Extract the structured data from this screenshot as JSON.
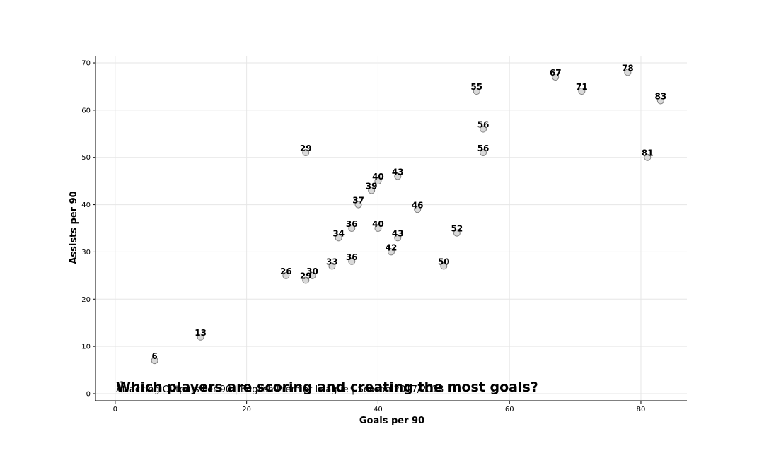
{
  "chart_data": {
    "type": "scatter",
    "title": "Which players are scoring and creating the most goals?",
    "subtitle": "Attacking Outputs Per 90 | English Premier League | Season 2017/2018",
    "xlabel": "Goals per 90",
    "ylabel": "Assists per 90",
    "xlim": [
      -3,
      87
    ],
    "ylim": [
      -1.5,
      71.5
    ],
    "xticks": [
      0,
      20,
      40,
      60,
      80
    ],
    "yticks": [
      0,
      10,
      20,
      30,
      40,
      50,
      60,
      70
    ],
    "grid": true,
    "legend": "none",
    "marker_fill": "#d9d9d9",
    "marker_edge": "#7f7f7f",
    "points": [
      {
        "x": 1,
        "y": 1,
        "label": "1"
      },
      {
        "x": 6,
        "y": 7,
        "label": "6"
      },
      {
        "x": 13,
        "y": 12,
        "label": "13"
      },
      {
        "x": 26,
        "y": 25,
        "label": "26"
      },
      {
        "x": 29,
        "y": 24,
        "label": "29"
      },
      {
        "x": 30,
        "y": 25,
        "label": "30"
      },
      {
        "x": 29,
        "y": 51,
        "label": "29"
      },
      {
        "x": 33,
        "y": 27,
        "label": "33"
      },
      {
        "x": 34,
        "y": 33,
        "label": "34"
      },
      {
        "x": 36,
        "y": 35,
        "label": "36"
      },
      {
        "x": 36,
        "y": 28,
        "label": "36"
      },
      {
        "x": 37,
        "y": 40,
        "label": "37"
      },
      {
        "x": 39,
        "y": 43,
        "label": "39"
      },
      {
        "x": 40,
        "y": 45,
        "label": "40"
      },
      {
        "x": 40,
        "y": 35,
        "label": "40"
      },
      {
        "x": 42,
        "y": 30,
        "label": "42"
      },
      {
        "x": 43,
        "y": 46,
        "label": "43"
      },
      {
        "x": 43,
        "y": 33,
        "label": "43"
      },
      {
        "x": 46,
        "y": 39,
        "label": "46"
      },
      {
        "x": 50,
        "y": 27,
        "label": "50"
      },
      {
        "x": 52,
        "y": 34,
        "label": "52"
      },
      {
        "x": 55,
        "y": 64,
        "label": "55"
      },
      {
        "x": 56,
        "y": 56,
        "label": "56"
      },
      {
        "x": 56,
        "y": 51,
        "label": "56"
      },
      {
        "x": 67,
        "y": 67,
        "label": "67"
      },
      {
        "x": 71,
        "y": 64,
        "label": "71"
      },
      {
        "x": 78,
        "y": 68,
        "label": "78"
      },
      {
        "x": 81,
        "y": 50,
        "label": "81"
      },
      {
        "x": 83,
        "y": 62,
        "label": "83"
      }
    ]
  }
}
